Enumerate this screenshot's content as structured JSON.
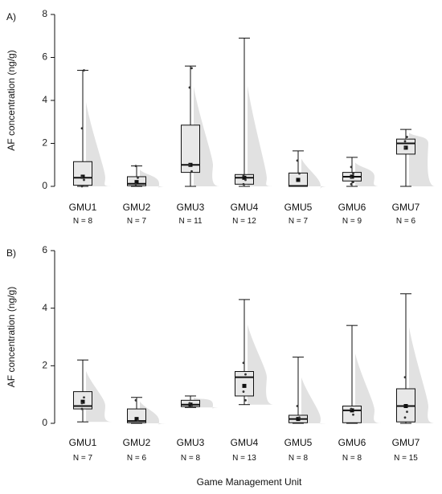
{
  "chart_data": [
    {
      "type": "box",
      "panel_label": "A)",
      "ylabel": "AF concentration (ng/g)",
      "xlabel": "",
      "ylim": [
        0,
        8
      ],
      "yticks": [
        "0",
        "2",
        "4",
        "6",
        "8"
      ],
      "categories": [
        "GMU1",
        "GMU2",
        "GMU3",
        "GMU4",
        "GMU5",
        "GMU6",
        "GMU7"
      ],
      "n_labels": [
        "N = 8",
        "N = 7",
        "N = 11",
        "N = 12",
        "N = 7",
        "N = 9",
        "N = 6"
      ],
      "boxes": [
        {
          "min": 0.0,
          "q1": 0.05,
          "median": 0.4,
          "q3": 1.15,
          "max": 5.4,
          "mean": 0.45,
          "points": [
            2.7,
            5.4,
            0.45,
            0.3,
            0.0
          ]
        },
        {
          "min": 0.0,
          "q1": 0.03,
          "median": 0.12,
          "q3": 0.45,
          "max": 0.95,
          "mean": 0.2,
          "points": [
            0.95,
            0.4,
            0.1
          ]
        },
        {
          "min": 0.0,
          "q1": 0.65,
          "median": 1.0,
          "q3": 2.85,
          "max": 5.6,
          "mean": 1.0,
          "points": [
            4.6,
            5.5,
            1.0,
            0.7
          ]
        },
        {
          "min": 0.0,
          "q1": 0.1,
          "median": 0.4,
          "q3": 0.55,
          "max": 6.9,
          "mean": 0.4,
          "points": [
            0.5,
            0.3,
            0.1
          ]
        },
        {
          "min": 0.0,
          "q1": 0.0,
          "median": 0.02,
          "q3": 0.62,
          "max": 1.65,
          "mean": 0.3,
          "points": [
            1.2,
            0.6
          ]
        },
        {
          "min": 0.0,
          "q1": 0.25,
          "median": 0.45,
          "q3": 0.65,
          "max": 1.35,
          "mean": 0.45,
          "points": [
            0.9,
            0.6,
            0.4,
            0.2,
            0.1
          ]
        },
        {
          "min": 0.0,
          "q1": 1.5,
          "median": 2.0,
          "q3": 2.2,
          "max": 2.65,
          "mean": 1.8,
          "points": [
            1.8,
            2.3,
            2.1
          ]
        }
      ]
    },
    {
      "type": "box",
      "panel_label": "B)",
      "ylabel": "AF concentration (ng/g)",
      "xlabel": "Game Management Unit",
      "ylim": [
        0,
        6
      ],
      "yticks": [
        "0",
        "2",
        "4",
        "6"
      ],
      "categories": [
        "GMU1",
        "GMU2",
        "GMU3",
        "GMU4",
        "GMU5",
        "GMU6",
        "GMU7"
      ],
      "n_labels": [
        "N = 7",
        "N = 6",
        "N = 8",
        "N = 13",
        "N = 8",
        "N = 8",
        "N = 15"
      ],
      "boxes": [
        {
          "min": 0.05,
          "q1": 0.5,
          "median": 0.6,
          "q3": 1.1,
          "max": 2.2,
          "mean": 0.75,
          "points": [
            0.7,
            0.9,
            0.5
          ]
        },
        {
          "min": 0.0,
          "q1": 0.02,
          "median": 0.08,
          "q3": 0.5,
          "max": 0.9,
          "mean": 0.15,
          "points": [
            0.8,
            0.1
          ]
        },
        {
          "min": 0.55,
          "q1": 0.58,
          "median": 0.65,
          "q3": 0.8,
          "max": 0.95,
          "mean": 0.65,
          "points": [
            0.7,
            0.6
          ]
        },
        {
          "min": 0.65,
          "q1": 0.95,
          "median": 1.6,
          "q3": 1.8,
          "max": 4.3,
          "mean": 1.3,
          "points": [
            2.1,
            1.7,
            1.1,
            0.8
          ]
        },
        {
          "min": 0.0,
          "q1": 0.02,
          "median": 0.15,
          "q3": 0.28,
          "max": 2.3,
          "mean": 0.15,
          "points": [
            0.6,
            0.2
          ]
        },
        {
          "min": 0.0,
          "q1": 0.02,
          "median": 0.45,
          "q3": 0.6,
          "max": 3.4,
          "mean": 0.45,
          "points": [
            0.5,
            0.3
          ]
        },
        {
          "min": 0.0,
          "q1": 0.05,
          "median": 0.6,
          "q3": 1.2,
          "max": 4.5,
          "mean": 0.6,
          "points": [
            1.6,
            0.4,
            0.2
          ]
        }
      ]
    }
  ]
}
